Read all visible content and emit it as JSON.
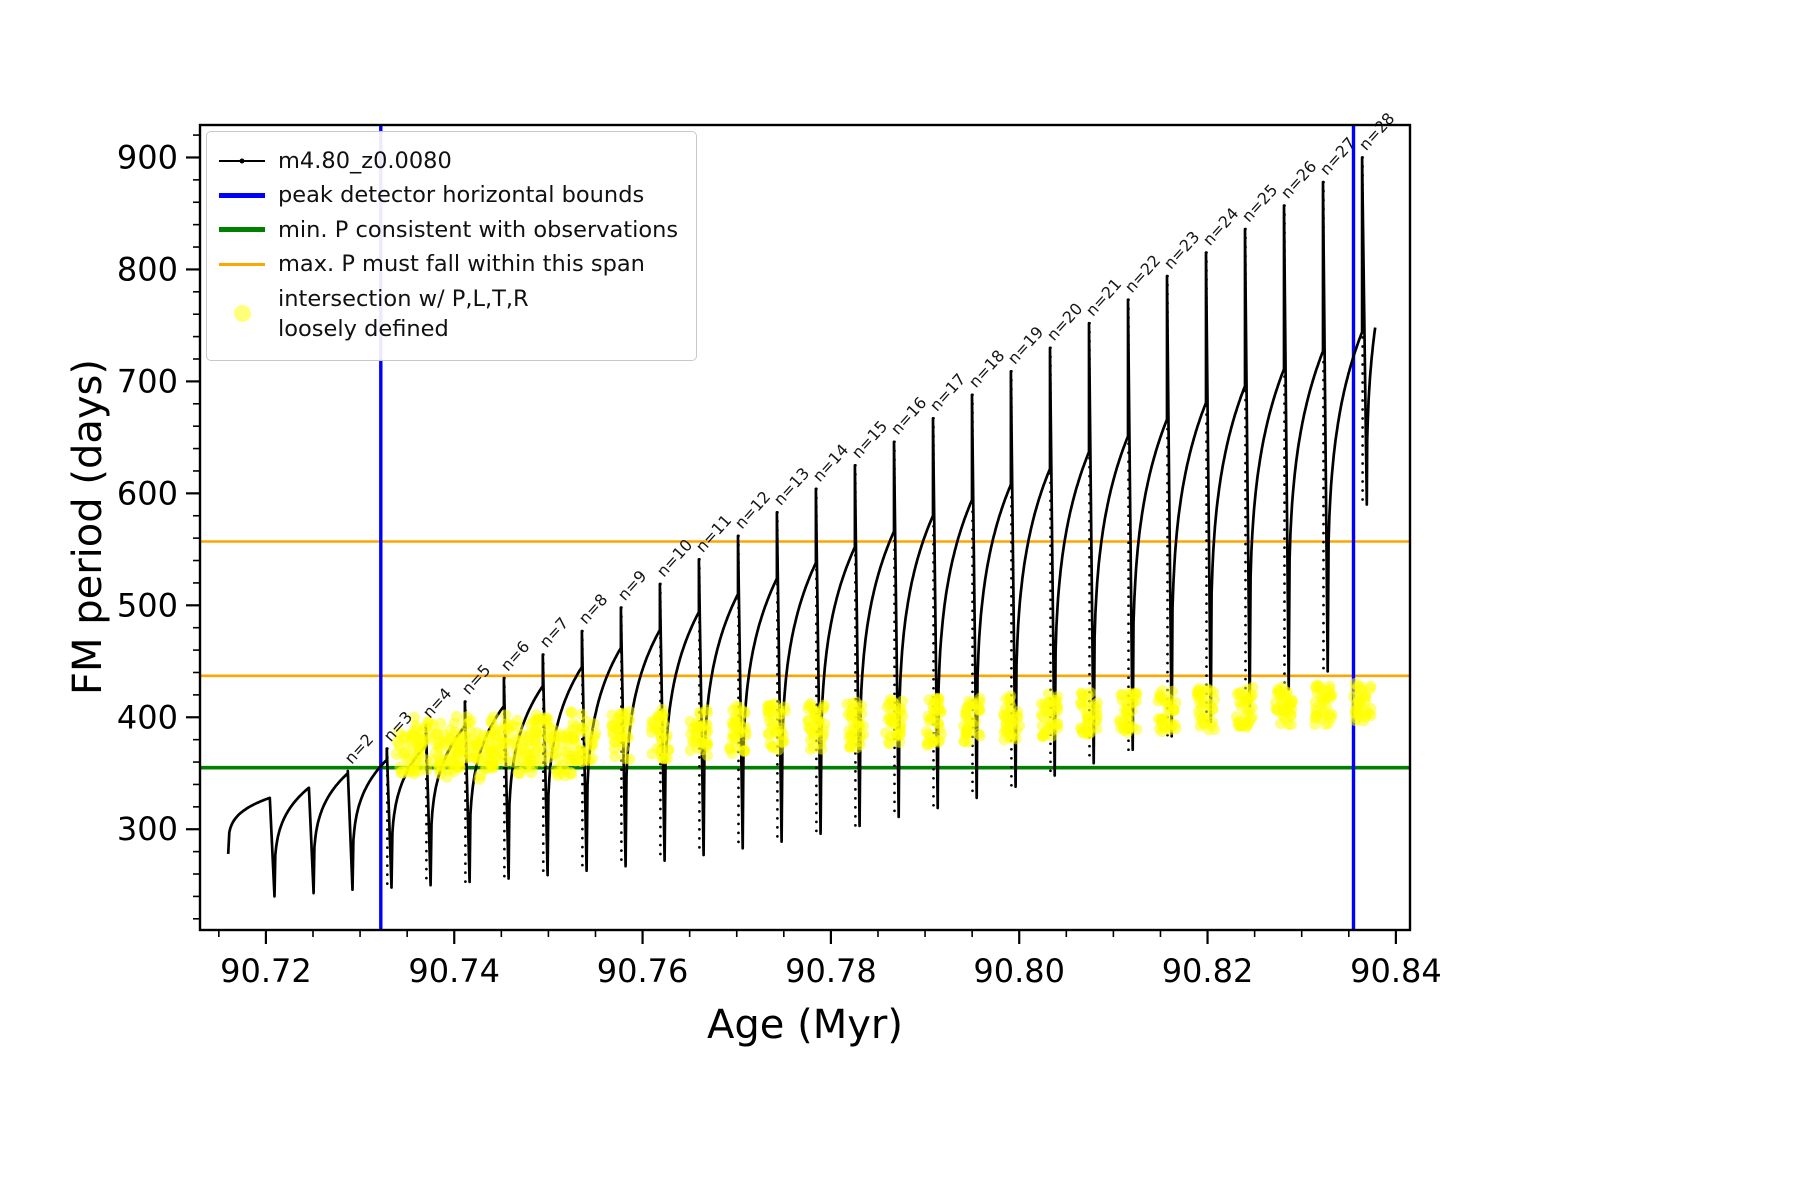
{
  "axes": {
    "x_label": "Age (Myr)",
    "y_label": "FM period (days)",
    "x_range": [
      90.713,
      90.8415
    ],
    "y_range": [
      210,
      929
    ],
    "x_ticks": [
      90.72,
      90.74,
      90.76,
      90.78,
      90.8,
      90.82,
      90.84
    ],
    "x_tick_labels": [
      "90.72",
      "90.74",
      "90.76",
      "90.78",
      "90.80",
      "90.82",
      "90.84"
    ],
    "x_minor_step": 0.005,
    "y_ticks": [
      300,
      400,
      500,
      600,
      700,
      800,
      900
    ],
    "y_tick_labels": [
      "300",
      "400",
      "500",
      "600",
      "700",
      "800",
      "900"
    ],
    "y_minor_step": 20,
    "grid": "off",
    "frame_color": "#000000"
  },
  "legend": {
    "position": "upper-left",
    "entries": [
      {
        "label": "m4.80_z0.0080",
        "type": "line-marker",
        "color": "#000000"
      },
      {
        "label": "peak detector horizontal bounds",
        "type": "line",
        "color": "#0000ff"
      },
      {
        "label": "min. P consistent with observations",
        "type": "line",
        "color": "#008000"
      },
      {
        "label": "max. P must fall within this span",
        "type": "line",
        "color": "#ffa500"
      },
      {
        "label": "intersection w/ P,L,T,R\nloosely defined",
        "type": "dot",
        "color": "#ffff00"
      }
    ]
  },
  "chart_data": {
    "type": "line",
    "title": "",
    "xlabel": "Age (Myr)",
    "ylabel": "FM period (days)",
    "series_name": "m4.80_z0.0080",
    "series_color": "#000000",
    "start_point": [
      90.716,
      278
    ],
    "end_point": [
      90.8378,
      748
    ],
    "vlines": {
      "label": "peak detector horizontal bounds",
      "color": "#0000ff",
      "x": [
        90.7322,
        90.8355
      ]
    },
    "hline_min_p": {
      "label": "min. P consistent with observations",
      "color": "#008000",
      "y": 355
    },
    "hlines_max_p_span": {
      "label": "max. P must fall within this span",
      "color": "#ffa500",
      "y": [
        437,
        557
      ]
    },
    "scatter": {
      "label": "intersection w/ P,L,T,R loosely defined",
      "color": "#ffff00",
      "opacity": 0.5
    },
    "cycles": [
      {
        "n": 0,
        "label": "",
        "x": 90.72041,
        "arc": 328,
        "top": 328,
        "dip": 240
      },
      {
        "n": 1,
        "label": "",
        "x": 90.72456,
        "arc": 337,
        "top": 337,
        "dip": 243
      },
      {
        "n": 2,
        "label": "n=2",
        "x": 90.7287,
        "arc": 350,
        "top": 352,
        "dip": 246
      },
      {
        "n": 3,
        "label": "n=3",
        "x": 90.73284,
        "arc": 362,
        "top": 372,
        "dip": 248
      },
      {
        "n": 4,
        "label": "n=4",
        "x": 90.73699,
        "arc": 375,
        "top": 393,
        "dip": 250,
        "band": [
          352,
          400
        ],
        "squiggle": true
      },
      {
        "n": 5,
        "label": "n=5",
        "x": 90.74113,
        "arc": 392,
        "top": 414,
        "dip": 253,
        "band": [
          354,
          401
        ],
        "squiggle": true
      },
      {
        "n": 6,
        "label": "n=6",
        "x": 90.74527,
        "arc": 410,
        "top": 435,
        "dip": 256,
        "band": [
          356,
          403
        ],
        "squiggle": true
      },
      {
        "n": 7,
        "label": "n=7",
        "x": 90.74941,
        "arc": 428,
        "top": 456,
        "dip": 259,
        "band": [
          357,
          404
        ],
        "squiggle": true
      },
      {
        "n": 8,
        "label": "n=8",
        "x": 90.75356,
        "arc": 445,
        "top": 477,
        "dip": 263,
        "band": [
          359,
          405
        ],
        "squiggle": true
      },
      {
        "n": 9,
        "label": "n=9",
        "x": 90.7577,
        "arc": 462,
        "top": 498,
        "dip": 267,
        "band": [
          361,
          406
        ]
      },
      {
        "n": 10,
        "label": "n=10",
        "x": 90.76184,
        "arc": 478,
        "top": 519,
        "dip": 272,
        "band": [
          363,
          408
        ]
      },
      {
        "n": 11,
        "label": "n=11",
        "x": 90.76598,
        "arc": 494,
        "top": 541,
        "dip": 277,
        "band": [
          365,
          409
        ]
      },
      {
        "n": 12,
        "label": "n=12",
        "x": 90.77013,
        "arc": 510,
        "top": 562,
        "dip": 283,
        "band": [
          366,
          410
        ]
      },
      {
        "n": 13,
        "label": "n=13",
        "x": 90.77427,
        "arc": 524,
        "top": 583,
        "dip": 289,
        "band": [
          368,
          412
        ]
      },
      {
        "n": 14,
        "label": "n=14",
        "x": 90.77841,
        "arc": 538,
        "top": 604,
        "dip": 296,
        "band": [
          370,
          413
        ]
      },
      {
        "n": 15,
        "label": "n=15",
        "x": 90.78255,
        "arc": 552,
        "top": 625,
        "dip": 303,
        "band": [
          372,
          414
        ]
      },
      {
        "n": 16,
        "label": "n=16",
        "x": 90.7867,
        "arc": 566,
        "top": 646,
        "dip": 311,
        "band": [
          374,
          416
        ]
      },
      {
        "n": 17,
        "label": "n=17",
        "x": 90.79084,
        "arc": 580,
        "top": 667,
        "dip": 319,
        "band": [
          375,
          417
        ]
      },
      {
        "n": 18,
        "label": "n=18",
        "x": 90.79498,
        "arc": 594,
        "top": 688,
        "dip": 328,
        "band": [
          377,
          418
        ]
      },
      {
        "n": 19,
        "label": "n=19",
        "x": 90.79912,
        "arc": 608,
        "top": 709,
        "dip": 338,
        "band": [
          379,
          420
        ]
      },
      {
        "n": 20,
        "label": "n=20",
        "x": 90.80327,
        "arc": 622,
        "top": 730,
        "dip": 348,
        "band": [
          381,
          421
        ]
      },
      {
        "n": 21,
        "label": "n=21",
        "x": 90.80741,
        "arc": 637,
        "top": 752,
        "dip": 359,
        "band": [
          383,
          422
        ]
      },
      {
        "n": 22,
        "label": "n=22",
        "x": 90.81155,
        "arc": 651,
        "top": 773,
        "dip": 371,
        "band": [
          384,
          423
        ]
      },
      {
        "n": 23,
        "label": "n=23",
        "x": 90.81569,
        "arc": 666,
        "top": 794,
        "dip": 383,
        "band": [
          386,
          425
        ]
      },
      {
        "n": 24,
        "label": "n=24",
        "x": 90.81984,
        "arc": 681,
        "top": 815,
        "dip": 396,
        "band": [
          388,
          426
        ]
      },
      {
        "n": 25,
        "label": "n=25",
        "x": 90.82398,
        "arc": 696,
        "top": 836,
        "dip": 410,
        "band": [
          390,
          427
        ]
      },
      {
        "n": 26,
        "label": "n=26",
        "x": 90.82812,
        "arc": 711,
        "top": 857,
        "dip": 425,
        "band": [
          392,
          429
        ]
      },
      {
        "n": 27,
        "label": "n=27",
        "x": 90.83226,
        "arc": 727,
        "top": 878,
        "dip": 441,
        "band": [
          393,
          430
        ]
      },
      {
        "n": 28,
        "label": "n=28",
        "x": 90.83641,
        "arc": 744,
        "top": 900,
        "dip": 590,
        "band": [
          395,
          431
        ]
      }
    ]
  }
}
